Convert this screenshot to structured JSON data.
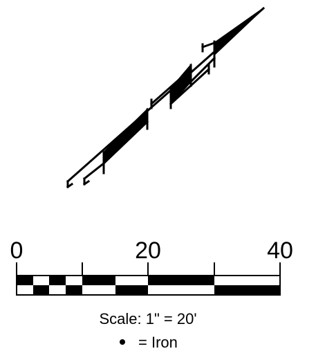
{
  "scale_bar": {
    "tick_labels": [
      "0",
      "20",
      "40"
    ],
    "caption": "Scale: 1\" = 20'"
  },
  "legend": {
    "symbol": "•",
    "text": "=  Iron"
  },
  "colors": {
    "ink": "#000000",
    "background": "#ffffff"
  }
}
